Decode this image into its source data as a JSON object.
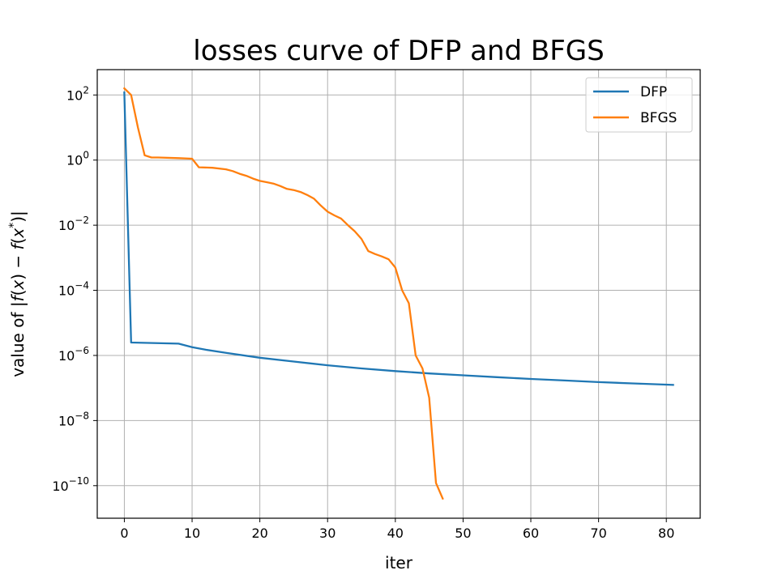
{
  "chart_data": {
    "type": "line",
    "title": "losses curve of DFP and BFGS",
    "xlabel": "iter",
    "ylabel": "value of |f(x) − f(x*)|",
    "ylabel_parts": {
      "prefix": "value of |",
      "f1": "f",
      "x1": "x",
      "mid": ") − ",
      "f2": "f",
      "x2": "x",
      "star": "*",
      "suffix": ")|"
    },
    "yscale": "log",
    "xlim": [
      -4,
      85
    ],
    "ylim": [
      1e-11,
      600.0
    ],
    "xticks": [
      0,
      10,
      20,
      30,
      40,
      50,
      60,
      70,
      80
    ],
    "yticks": [
      {
        "value": 100.0,
        "base": "10",
        "exp": "2"
      },
      {
        "value": 1.0,
        "base": "10",
        "exp": "0"
      },
      {
        "value": 0.01,
        "base": "10",
        "exp": "−2"
      },
      {
        "value": 0.0001,
        "base": "10",
        "exp": "−4"
      },
      {
        "value": 1e-06,
        "base": "10",
        "exp": "−6"
      },
      {
        "value": 1e-08,
        "base": "10",
        "exp": "−8"
      },
      {
        "value": 1e-10,
        "base": "10",
        "exp": "−10"
      }
    ],
    "grid": true,
    "legend_position": "top-right",
    "series": [
      {
        "name": "DFP",
        "color": "#1f77b4",
        "points": [
          [
            0,
            120
          ],
          [
            1,
            2.5e-06
          ],
          [
            8,
            2.3e-06
          ],
          [
            10,
            1.8e-06
          ],
          [
            12,
            1.5e-06
          ],
          [
            15,
            1.2e-06
          ],
          [
            20,
            8.5e-07
          ],
          [
            25,
            6.5e-07
          ],
          [
            30,
            5e-07
          ],
          [
            35,
            4e-07
          ],
          [
            40,
            3.3e-07
          ],
          [
            45,
            2.8e-07
          ],
          [
            50,
            2.45e-07
          ],
          [
            55,
            2.15e-07
          ],
          [
            60,
            1.9e-07
          ],
          [
            65,
            1.7e-07
          ],
          [
            70,
            1.52e-07
          ],
          [
            75,
            1.38e-07
          ],
          [
            81,
            1.25e-07
          ]
        ]
      },
      {
        "name": "BFGS",
        "color": "#ff7f0e",
        "points": [
          [
            0,
            160
          ],
          [
            1,
            100
          ],
          [
            2,
            10
          ],
          [
            3,
            1.4
          ],
          [
            4,
            1.2
          ],
          [
            5,
            1.2
          ],
          [
            8,
            1.15
          ],
          [
            10,
            1.1
          ],
          [
            11,
            0.6
          ],
          [
            13,
            0.58
          ],
          [
            15,
            0.52
          ],
          [
            16,
            0.46
          ],
          [
            17,
            0.38
          ],
          [
            18,
            0.33
          ],
          [
            19,
            0.27
          ],
          [
            20,
            0.23
          ],
          [
            21,
            0.21
          ],
          [
            22,
            0.19
          ],
          [
            23,
            0.16
          ],
          [
            24,
            0.13
          ],
          [
            25,
            0.12
          ],
          [
            26,
            0.105
          ],
          [
            27,
            0.085
          ],
          [
            28,
            0.065
          ],
          [
            29,
            0.04
          ],
          [
            30,
            0.026
          ],
          [
            31,
            0.02
          ],
          [
            32,
            0.016
          ],
          [
            33,
            0.01
          ],
          [
            34,
            0.0065
          ],
          [
            35,
            0.0038
          ],
          [
            36,
            0.0016
          ],
          [
            37,
            0.0013
          ],
          [
            38,
            0.0011
          ],
          [
            39,
            0.0009
          ],
          [
            40,
            0.0005
          ],
          [
            41,
            0.0001
          ],
          [
            42,
            4e-05
          ],
          [
            43,
            1e-06
          ],
          [
            44,
            4e-07
          ],
          [
            45,
            5e-08
          ],
          [
            46,
            1.2e-10
          ],
          [
            47,
            4e-11
          ]
        ]
      }
    ]
  }
}
